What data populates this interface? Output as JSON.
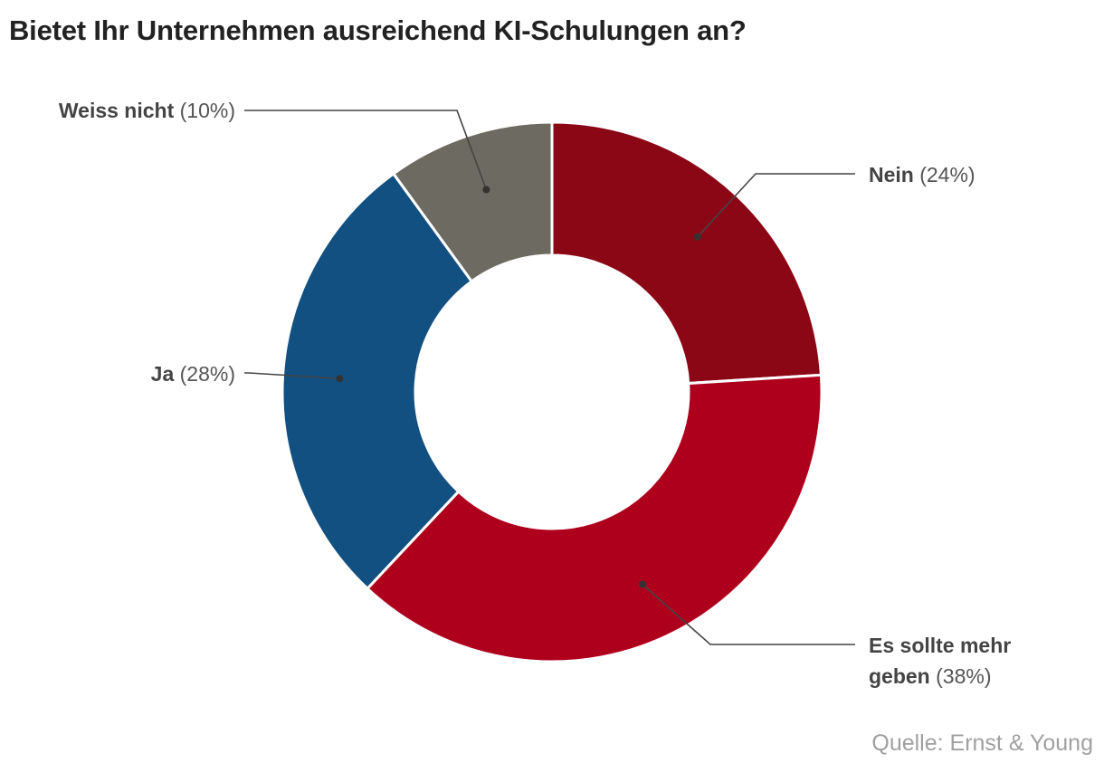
{
  "title": "Bietet Ihr Unternehmen ausreichend KI-Schulungen an?",
  "source": "Quelle: Ernst & Young",
  "chart_data": {
    "type": "pie",
    "variant": "donut",
    "title": "Bietet Ihr Unternehmen ausreichend KI-Schulungen an?",
    "slices": [
      {
        "label": "Nein",
        "value": 24,
        "percent_label": "(24%)",
        "color": "#8b0716"
      },
      {
        "label": "Es sollte mehr geben",
        "label_lines": [
          "Es sollte mehr",
          "geben"
        ],
        "value": 38,
        "percent_label": "(38%)",
        "color": "#ae001d"
      },
      {
        "label": "Ja",
        "value": 28,
        "percent_label": "(28%)",
        "color": "#135082"
      },
      {
        "label": "Weiss nicht",
        "value": 10,
        "percent_label": "(10%)",
        "color": "#6d6a61"
      }
    ]
  }
}
